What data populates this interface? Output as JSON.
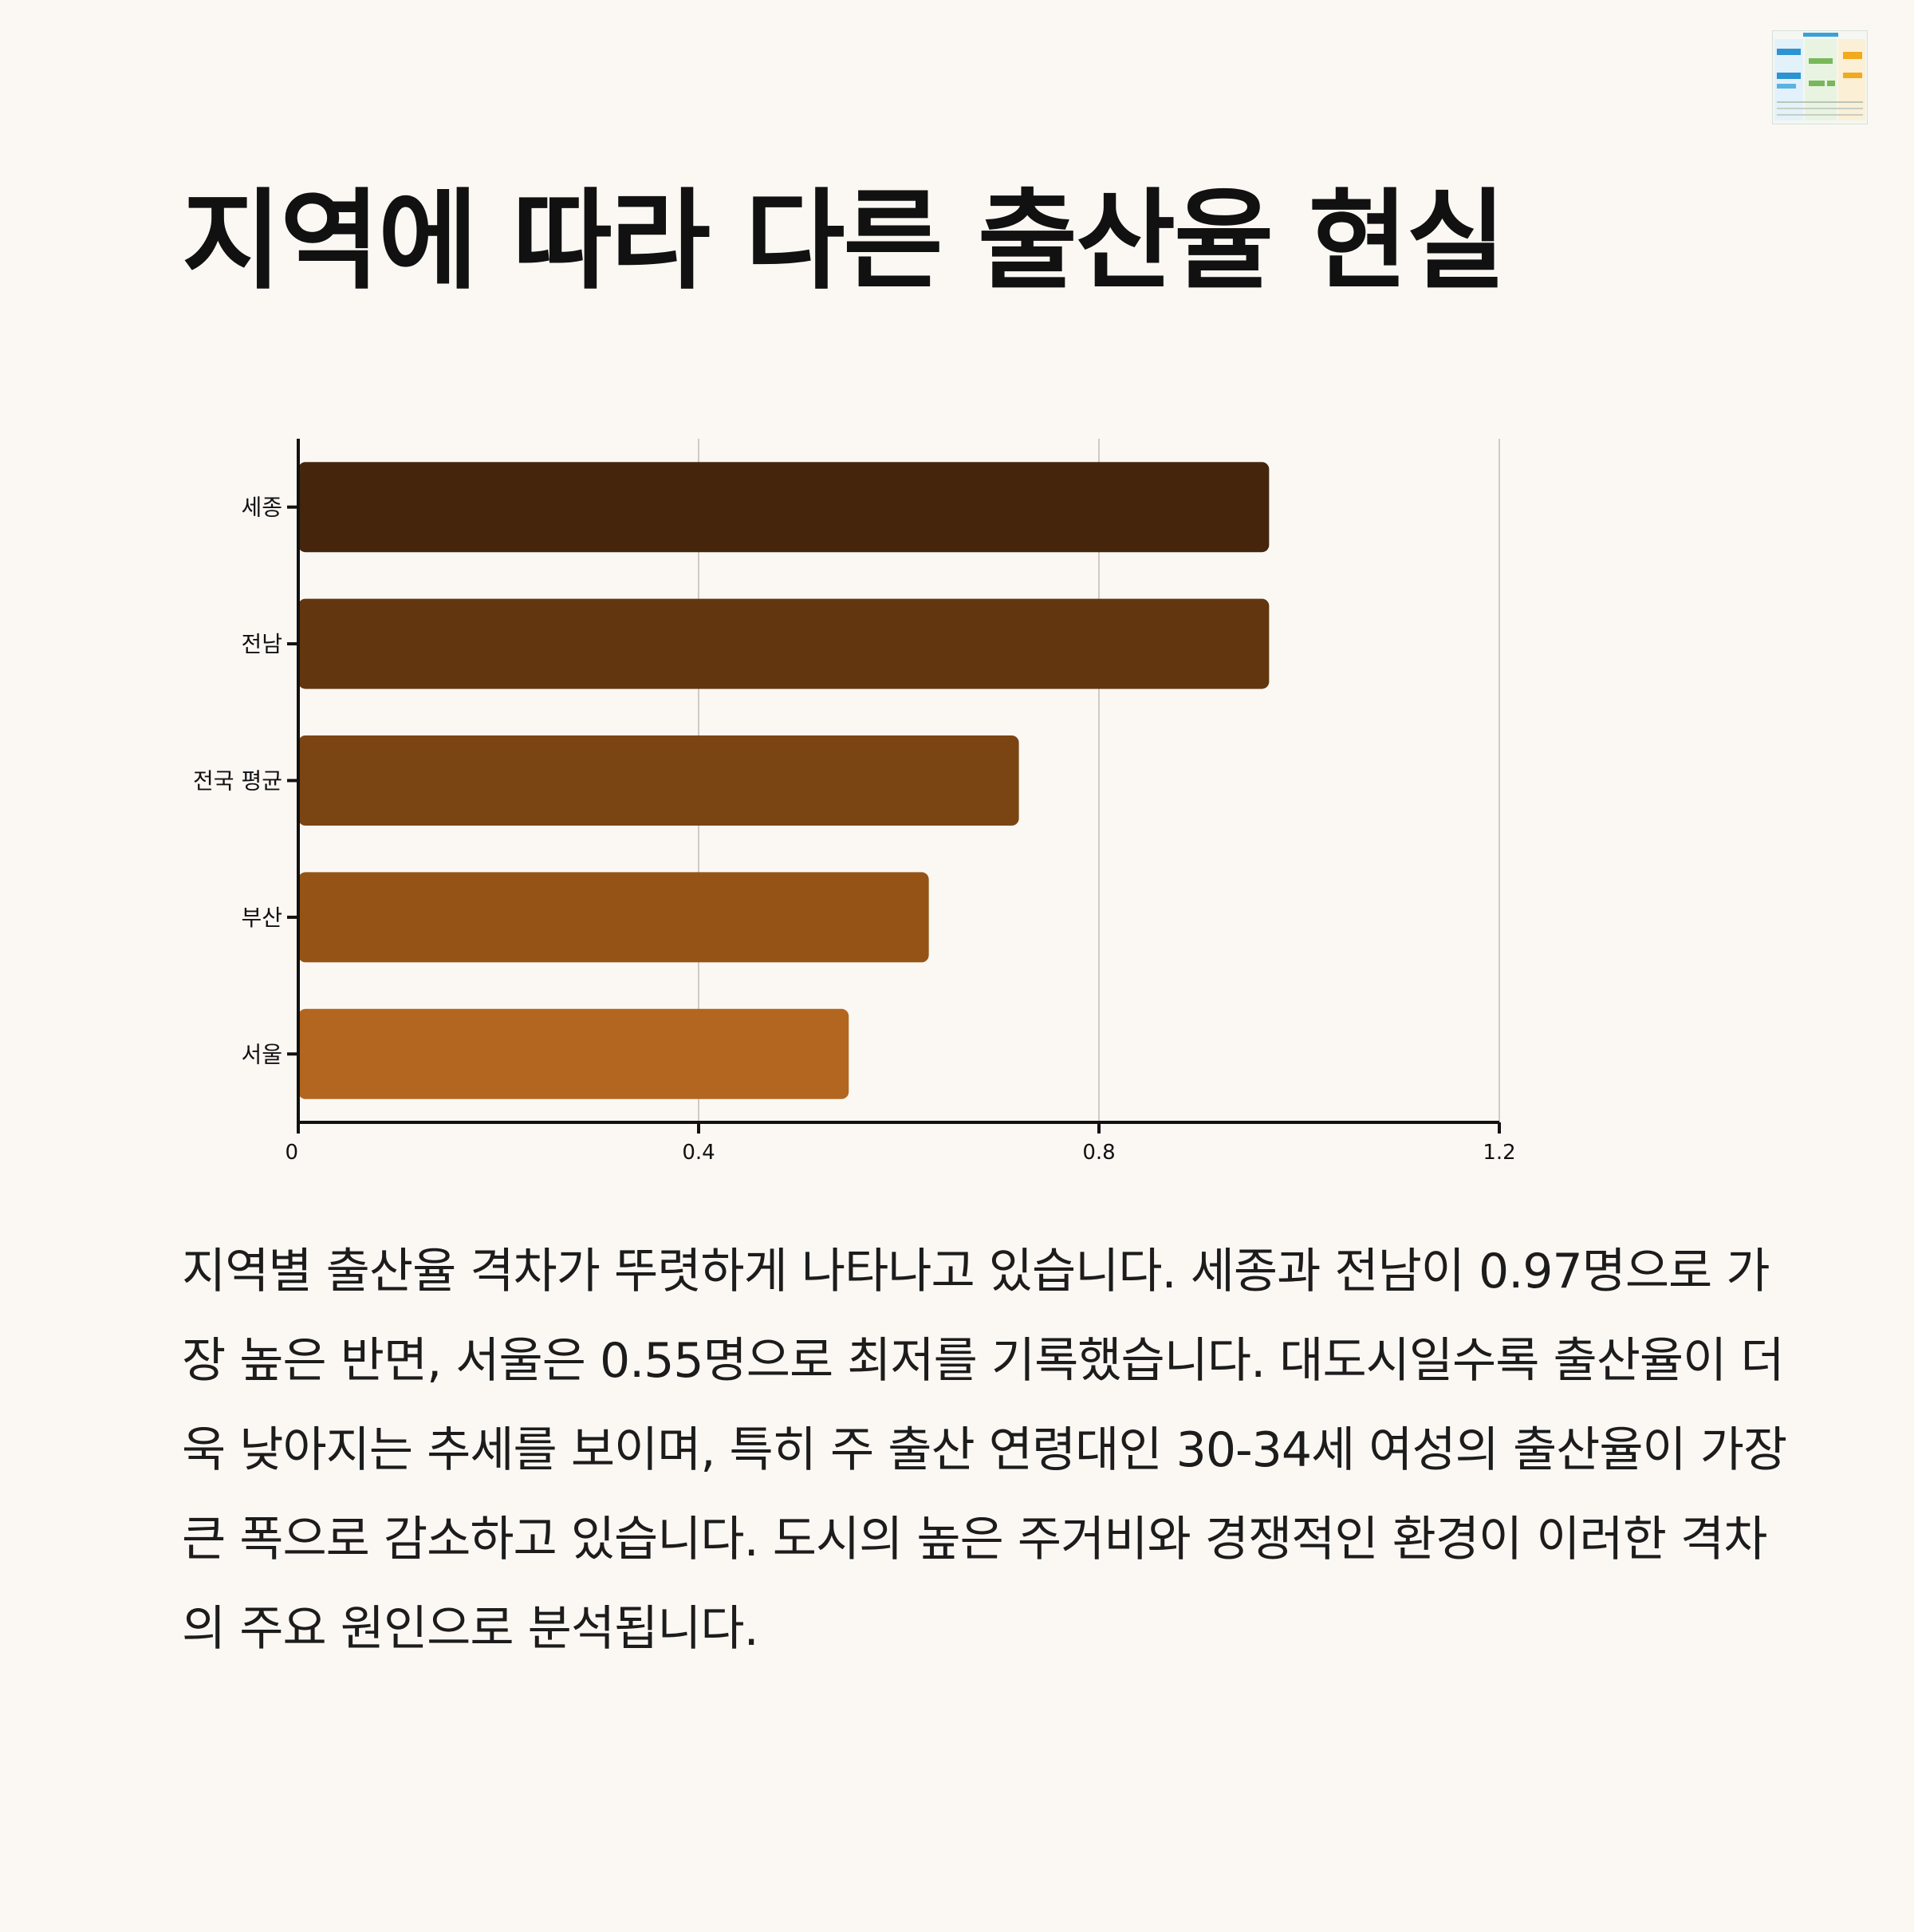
{
  "page": {
    "title": "지역에 따라 다른 출산율 현실",
    "description": "지역별 출산율 격차가 뚜렷하게 나타나고 있습니다. 세종과 전남이 0.97명으로 가장 높은 반면, 서울은 0.55명으로 최저를 기록했습니다. 대도시일수록 출산율이 더욱 낮아지는 추세를 보이며, 특히 주 출산 연령대인 30-34세 여성의 출산율이 가장 큰 폭으로 감소하고 있습니다. 도시의 높은 주거비와 경쟁적인 환경이 이러한 격차의 주요 원인으로 분석됩니다."
  },
  "chart_data": {
    "type": "bar",
    "orientation": "horizontal",
    "categories": [
      "세종",
      "전남",
      "전국 평균",
      "부산",
      "서울"
    ],
    "values": [
      0.97,
      0.97,
      0.72,
      0.63,
      0.55
    ],
    "colors": [
      "#45260c",
      "#62360f",
      "#7a4413",
      "#955416",
      "#b3661f"
    ],
    "xlim": [
      0,
      1.2
    ],
    "xticks": [
      "0",
      "0.4",
      "0.8",
      "1.2"
    ],
    "xtick_values": [
      0,
      0.4,
      0.8,
      1.2
    ],
    "grid": "vertical"
  }
}
